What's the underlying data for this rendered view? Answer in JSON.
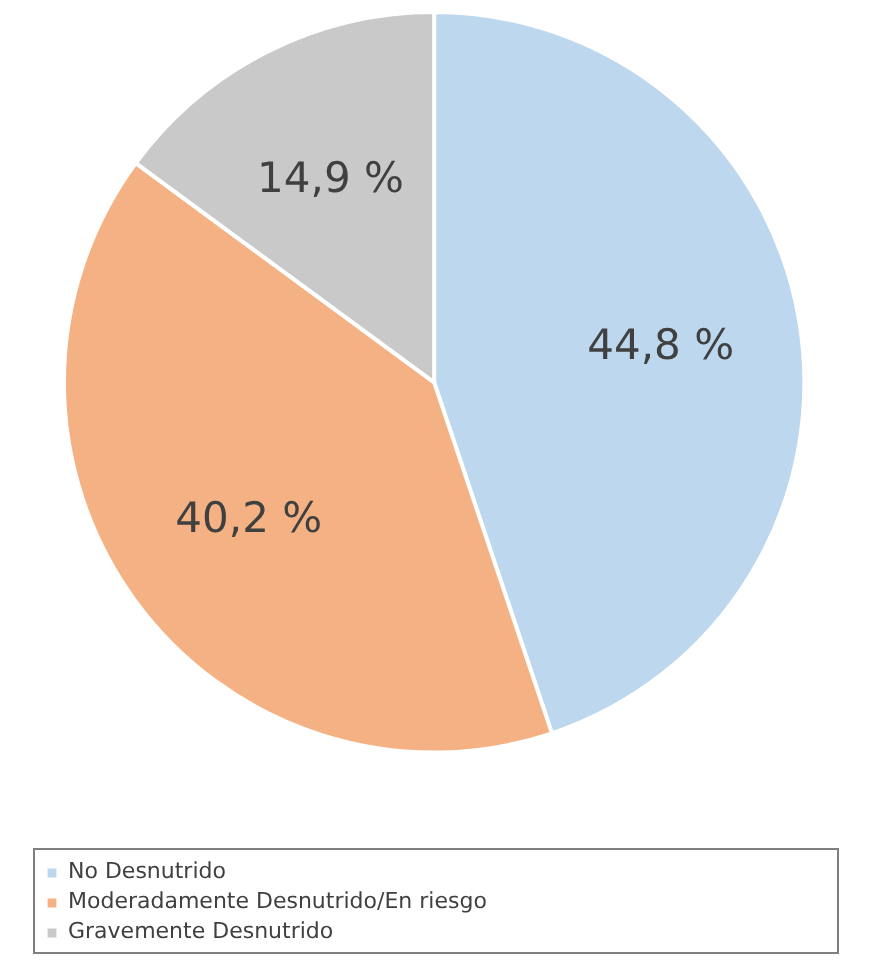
{
  "chart_data": {
    "type": "pie",
    "categories": [
      "No Desnutrido",
      "Moderadamente Desnutrido/En riesgo",
      "Gravemente Desnutrido"
    ],
    "values": [
      44.8,
      40.2,
      14.9
    ],
    "colors": [
      "#bdd7ee",
      "#f4b183",
      "#c9c9c9"
    ],
    "value_labels": [
      "44,8 %",
      "40,2 %",
      "14,9 %"
    ],
    "legend": "bottom"
  }
}
